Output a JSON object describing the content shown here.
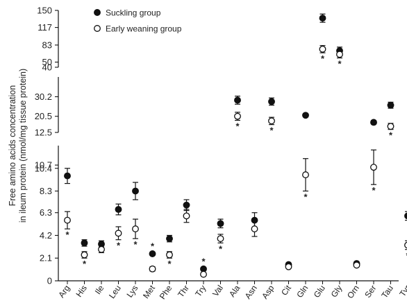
{
  "chart_data": {
    "type": "scatter",
    "xlabel": "",
    "ylabel": [
      "Free amino acids concentration",
      "in ileum protein (nmol/mg tissue protein)"
    ],
    "panels": [
      {
        "ticks": [
          50,
          83,
          117,
          150
        ],
        "ylim": [
          40,
          150
        ]
      },
      {
        "ticks": [
          10.7,
          20.5,
          30.2,
          40
        ],
        "ylim": [
          12.5,
          40
        ]
      },
      {
        "ticks": [
          0,
          2.1,
          4.2,
          6.3,
          8.3,
          10.4,
          12.5
        ],
        "ylim": [
          0,
          12.5
        ]
      }
    ],
    "categories": [
      "Arg",
      "His",
      "Ile",
      "Leu",
      "Lys",
      "Met",
      "Phe",
      "Thr",
      "Try",
      "Val",
      "Ala",
      "Asn",
      "Asp",
      "Cit",
      "Gln",
      "Glu",
      "Gly",
      "Orn",
      "Ser",
      "Tau",
      "Tyr"
    ],
    "series": [
      {
        "name": "Suckling group",
        "marker": "filled",
        "color": "#111111",
        "values": [
          9.7,
          3.5,
          3.4,
          6.6,
          8.3,
          2.5,
          3.9,
          7.0,
          1.1,
          5.3,
          28.5,
          5.6,
          27.8,
          1.5,
          21.0,
          135,
          72,
          1.6,
          17.5,
          26.0,
          6.0
        ],
        "errors": [
          0.7,
          0.3,
          0.3,
          0.5,
          0.8,
          0.15,
          0.3,
          0.5,
          0.15,
          0.4,
          2.0,
          0.7,
          1.8,
          0.1,
          0.8,
          8,
          7,
          0.1,
          0.9,
          1.5,
          0.4
        ]
      },
      {
        "name": "Early weaning group",
        "marker": "open",
        "color": "#111111",
        "values": [
          5.6,
          2.4,
          2.9,
          4.4,
          4.8,
          1.1,
          2.4,
          6.0,
          0.6,
          3.9,
          20.5,
          4.8,
          18.2,
          1.3,
          9.8,
          75,
          65,
          1.45,
          10.5,
          15.5,
          3.3
        ],
        "errors": [
          0.8,
          0.3,
          0.3,
          0.6,
          0.9,
          0.2,
          0.3,
          0.6,
          0.15,
          0.4,
          2.0,
          0.7,
          1.8,
          0.1,
          1.5,
          7,
          7,
          0.1,
          1.6,
          1.5,
          0.4
        ]
      }
    ],
    "significance_marker": "*",
    "significant": [
      true,
      true,
      false,
      true,
      true,
      true,
      true,
      false,
      true,
      true,
      true,
      false,
      true,
      false,
      true,
      true,
      true,
      false,
      true,
      true,
      true
    ],
    "legend": {
      "placement": "top-left"
    }
  }
}
